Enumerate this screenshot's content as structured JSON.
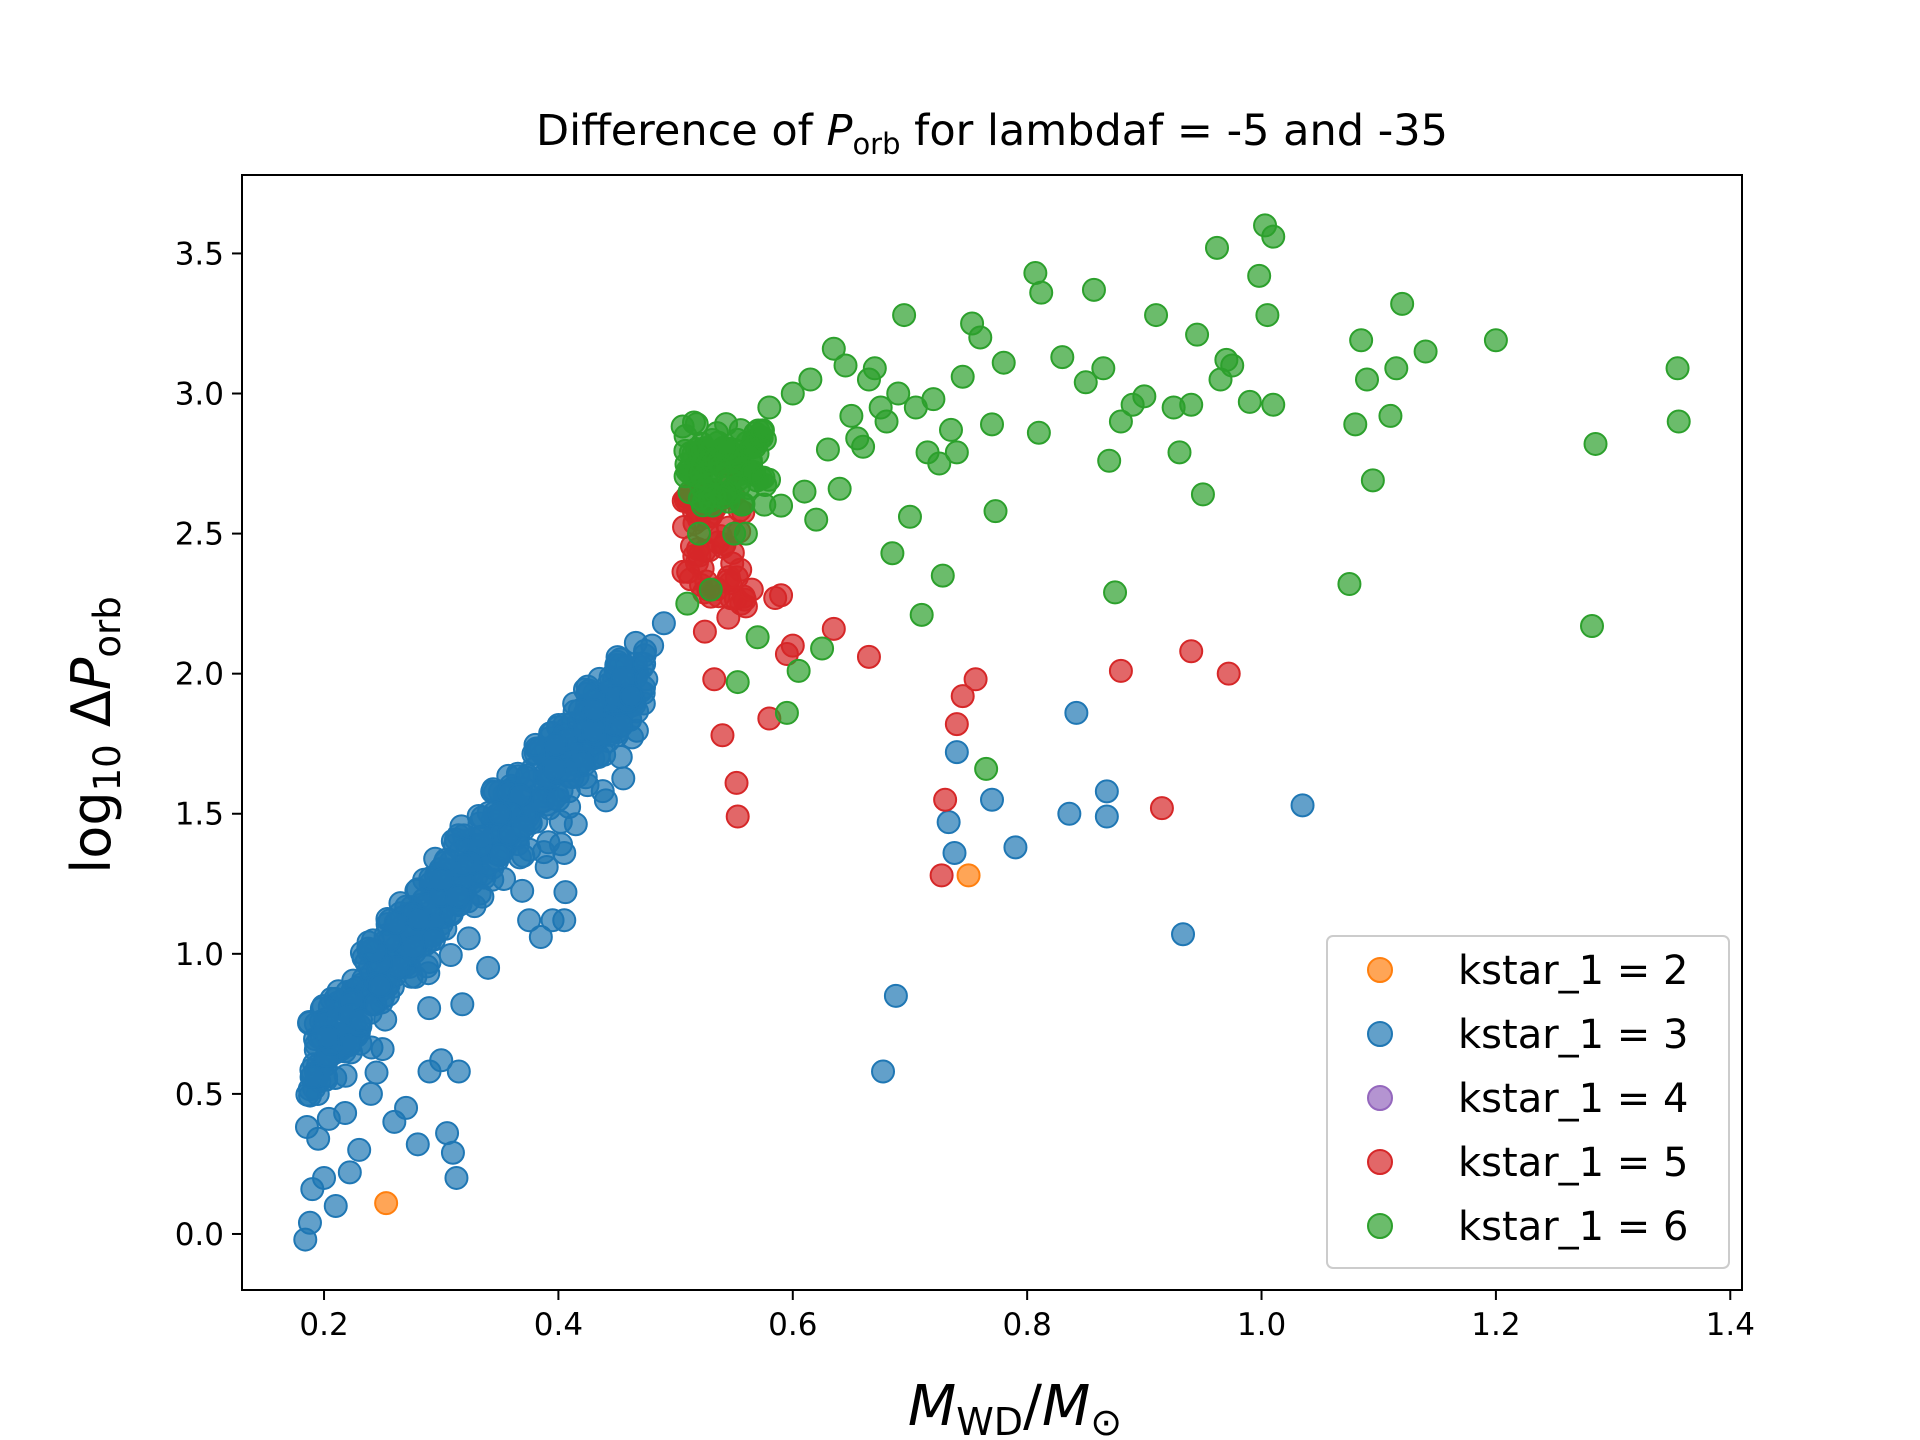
{
  "chart_data": {
    "type": "scatter",
    "title": {
      "prefix": "Difference of ",
      "var": "P",
      "var_sub": "orb",
      "suffix": " for lambdaf = -5 and -35"
    },
    "xlabel": {
      "var": "M",
      "sub": "WD",
      "sep": "/",
      "var2": "M",
      "sub2": "⊙"
    },
    "ylabel": {
      "prefix": "log",
      "prefix_sub": "10",
      "mid": " Δ",
      "var": "P",
      "var_sub": "orb"
    },
    "xlim": [
      0.13,
      1.41
    ],
    "ylim": [
      -0.2,
      3.78
    ],
    "xticks": [
      0.2,
      0.4,
      0.6,
      0.8,
      1.0,
      1.2,
      1.4
    ],
    "yticks": [
      0.0,
      0.5,
      1.0,
      1.5,
      2.0,
      2.5,
      3.0,
      3.5
    ],
    "xtick_labels": [
      "0.2",
      "0.4",
      "0.6",
      "0.8",
      "1.0",
      "1.2",
      "1.4"
    ],
    "ytick_labels": [
      "0.0",
      "0.5",
      "1.0",
      "1.5",
      "2.0",
      "2.5",
      "3.0",
      "3.5"
    ],
    "grid": false,
    "legend_position": "bottom-right",
    "series": [
      {
        "name": "kstar_1 = 2",
        "color": "#ff7f0e",
        "points": [
          [
            0.253,
            0.11
          ],
          [
            0.75,
            1.28
          ]
        ]
      },
      {
        "name": "kstar_1 = 3",
        "color": "#1f77b4",
        "band": {
          "x_from": 0.185,
          "x_to": 0.475,
          "n": 560,
          "seed": 7,
          "center_a": -0.58,
          "center_b": 6.97,
          "center_c": -1.56,
          "spread": 0.28
        },
        "points": [
          [
            0.184,
            -0.02
          ],
          [
            0.188,
            0.04
          ],
          [
            0.19,
            0.16
          ],
          [
            0.195,
            0.34
          ],
          [
            0.2,
            0.2
          ],
          [
            0.21,
            0.1
          ],
          [
            0.222,
            0.22
          ],
          [
            0.23,
            0.3
          ],
          [
            0.24,
            0.5
          ],
          [
            0.25,
            0.66
          ],
          [
            0.26,
            0.4
          ],
          [
            0.27,
            0.45
          ],
          [
            0.28,
            0.32
          ],
          [
            0.29,
            0.58
          ],
          [
            0.3,
            0.62
          ],
          [
            0.305,
            0.36
          ],
          [
            0.31,
            0.29
          ],
          [
            0.313,
            0.2
          ],
          [
            0.315,
            0.58
          ],
          [
            0.318,
            0.82
          ],
          [
            0.34,
            0.95
          ],
          [
            0.35,
            1.5
          ],
          [
            0.37,
            1.35
          ],
          [
            0.375,
            1.12
          ],
          [
            0.385,
            1.06
          ],
          [
            0.39,
            1.31
          ],
          [
            0.395,
            1.12
          ],
          [
            0.4,
            1.55
          ],
          [
            0.405,
            1.12
          ],
          [
            0.405,
            1.36
          ],
          [
            0.406,
            1.22
          ],
          [
            0.43,
            1.87
          ],
          [
            0.45,
            1.92
          ],
          [
            0.462,
            1.92
          ],
          [
            0.475,
            1.98
          ],
          [
            0.48,
            2.1
          ],
          [
            0.49,
            2.18
          ],
          [
            0.688,
            0.85
          ],
          [
            0.677,
            0.58
          ],
          [
            0.733,
            1.47
          ],
          [
            0.738,
            1.36
          ],
          [
            0.74,
            1.72
          ],
          [
            0.77,
            1.55
          ],
          [
            0.79,
            1.38
          ],
          [
            0.836,
            1.5
          ],
          [
            0.842,
            1.86
          ],
          [
            0.868,
            1.58
          ],
          [
            0.868,
            1.49
          ],
          [
            0.933,
            1.07
          ],
          [
            1.035,
            1.53
          ]
        ]
      },
      {
        "name": "kstar_1 = 4",
        "color": "#9467bd",
        "points": []
      },
      {
        "name": "kstar_1 = 5",
        "color": "#d62728",
        "band": {
          "x_from": 0.505,
          "x_to": 0.56,
          "n": 60,
          "seed": 11,
          "y_from": 2.25,
          "y_to": 2.78
        },
        "points": [
          [
            0.516,
            2.42
          ],
          [
            0.52,
            2.55
          ],
          [
            0.525,
            2.15
          ],
          [
            0.528,
            2.3
          ],
          [
            0.533,
            1.98
          ],
          [
            0.54,
            1.78
          ],
          [
            0.545,
            2.2
          ],
          [
            0.552,
            1.61
          ],
          [
            0.553,
            1.49
          ],
          [
            0.556,
            2.25
          ],
          [
            0.56,
            2.24
          ],
          [
            0.565,
            2.3
          ],
          [
            0.58,
            1.84
          ],
          [
            0.585,
            2.27
          ],
          [
            0.59,
            2.28
          ],
          [
            0.595,
            2.07
          ],
          [
            0.6,
            2.1
          ],
          [
            0.635,
            2.16
          ],
          [
            0.665,
            2.06
          ],
          [
            0.727,
            1.28
          ],
          [
            0.73,
            1.55
          ],
          [
            0.74,
            1.82
          ],
          [
            0.745,
            1.92
          ],
          [
            0.756,
            1.98
          ],
          [
            0.88,
            2.01
          ],
          [
            0.915,
            1.52
          ],
          [
            0.94,
            2.08
          ],
          [
            0.972,
            2.0
          ]
        ]
      },
      {
        "name": "kstar_1 = 6",
        "color": "#2ca02c",
        "band": {
          "x_from": 0.505,
          "x_to": 0.58,
          "n": 90,
          "seed": 19,
          "y_from": 2.6,
          "y_to": 2.9
        },
        "points": [
          [
            0.51,
            2.25
          ],
          [
            0.52,
            2.5
          ],
          [
            0.53,
            2.3
          ],
          [
            0.54,
            2.8
          ],
          [
            0.55,
            2.5
          ],
          [
            0.553,
            1.97
          ],
          [
            0.56,
            2.5
          ],
          [
            0.57,
            2.13
          ],
          [
            0.575,
            2.7
          ],
          [
            0.58,
            2.95
          ],
          [
            0.59,
            2.6
          ],
          [
            0.595,
            1.86
          ],
          [
            0.6,
            3.0
          ],
          [
            0.605,
            2.01
          ],
          [
            0.61,
            2.65
          ],
          [
            0.615,
            3.05
          ],
          [
            0.62,
            2.55
          ],
          [
            0.625,
            2.09
          ],
          [
            0.63,
            2.8
          ],
          [
            0.635,
            3.16
          ],
          [
            0.64,
            2.66
          ],
          [
            0.645,
            3.1
          ],
          [
            0.65,
            2.92
          ],
          [
            0.655,
            2.84
          ],
          [
            0.66,
            2.81
          ],
          [
            0.665,
            3.05
          ],
          [
            0.67,
            3.09
          ],
          [
            0.675,
            2.95
          ],
          [
            0.68,
            2.9
          ],
          [
            0.685,
            2.43
          ],
          [
            0.69,
            3.0
          ],
          [
            0.695,
            3.28
          ],
          [
            0.7,
            2.56
          ],
          [
            0.705,
            2.95
          ],
          [
            0.71,
            2.21
          ],
          [
            0.715,
            2.79
          ],
          [
            0.72,
            2.98
          ],
          [
            0.725,
            2.75
          ],
          [
            0.728,
            2.35
          ],
          [
            0.735,
            2.87
          ],
          [
            0.74,
            2.79
          ],
          [
            0.745,
            3.06
          ],
          [
            0.753,
            3.25
          ],
          [
            0.76,
            3.2
          ],
          [
            0.765,
            1.66
          ],
          [
            0.77,
            2.89
          ],
          [
            0.773,
            2.58
          ],
          [
            0.78,
            3.11
          ],
          [
            0.807,
            3.43
          ],
          [
            0.81,
            2.86
          ],
          [
            0.812,
            3.36
          ],
          [
            0.83,
            3.13
          ],
          [
            0.85,
            3.04
          ],
          [
            0.857,
            3.37
          ],
          [
            0.865,
            3.09
          ],
          [
            0.87,
            2.76
          ],
          [
            0.875,
            2.29
          ],
          [
            0.88,
            2.9
          ],
          [
            0.89,
            2.96
          ],
          [
            0.9,
            2.99
          ],
          [
            0.91,
            3.28
          ],
          [
            0.925,
            2.95
          ],
          [
            0.93,
            2.79
          ],
          [
            0.94,
            2.96
          ],
          [
            0.945,
            3.21
          ],
          [
            0.95,
            2.64
          ],
          [
            0.962,
            3.52
          ],
          [
            0.965,
            3.05
          ],
          [
            0.97,
            3.12
          ],
          [
            0.975,
            3.1
          ],
          [
            0.99,
            2.97
          ],
          [
            0.998,
            3.42
          ],
          [
            1.003,
            3.6
          ],
          [
            1.005,
            3.28
          ],
          [
            1.01,
            3.56
          ],
          [
            1.01,
            2.96
          ],
          [
            1.075,
            2.32
          ],
          [
            1.08,
            2.89
          ],
          [
            1.085,
            3.19
          ],
          [
            1.09,
            3.05
          ],
          [
            1.095,
            2.69
          ],
          [
            1.11,
            2.92
          ],
          [
            1.115,
            3.09
          ],
          [
            1.12,
            3.32
          ],
          [
            1.14,
            3.15
          ],
          [
            1.2,
            3.19
          ],
          [
            1.282,
            2.17
          ],
          [
            1.285,
            2.82
          ],
          [
            1.355,
            3.09
          ],
          [
            1.356,
            2.9
          ]
        ]
      }
    ]
  }
}
